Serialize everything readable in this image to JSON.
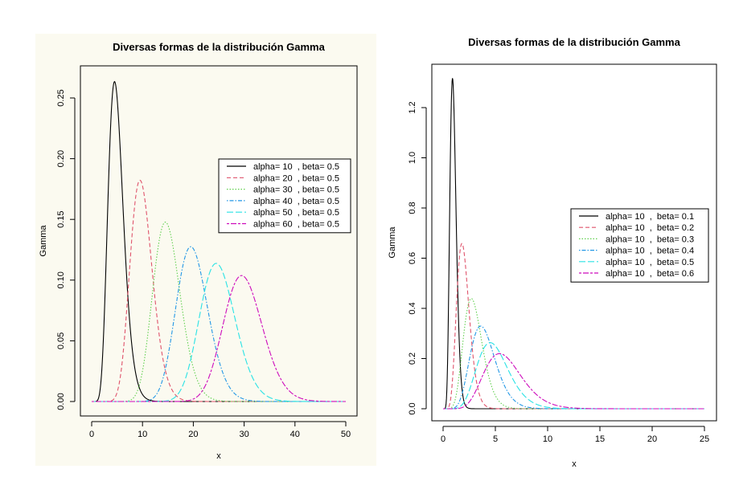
{
  "chart_data": [
    {
      "type": "line",
      "title": "Diversas formas de la distribución Gamma",
      "xlabel": "x",
      "ylabel": "Gamma",
      "xlim": [
        0,
        50
      ],
      "ylim": [
        0,
        0.27
      ],
      "xticks": [
        "0",
        "10",
        "20",
        "30",
        "40",
        "50"
      ],
      "xtick_values": [
        0,
        10,
        20,
        30,
        40,
        50
      ],
      "yticks": [
        "0.00",
        "0.05",
        "0.10",
        "0.15",
        "0.20",
        "0.25"
      ],
      "ytick_values": [
        0,
        0.05,
        0.1,
        0.15,
        0.2,
        0.25
      ],
      "grid": false,
      "legend_position": "right",
      "series": [
        {
          "name": "alpha= 10  , beta= 0.5",
          "shape": 10,
          "scale": 0.5,
          "color": "#000000",
          "dash": "solid"
        },
        {
          "name": "alpha= 20  , beta= 0.5",
          "shape": 20,
          "scale": 0.5,
          "color": "#DF536B",
          "dash": "dashed"
        },
        {
          "name": "alpha= 30  , beta= 0.5",
          "shape": 30,
          "scale": 0.5,
          "color": "#61D04F",
          "dash": "dotted"
        },
        {
          "name": "alpha= 40  , beta= 0.5",
          "shape": 40,
          "scale": 0.5,
          "color": "#2297E6",
          "dash": "dotdash"
        },
        {
          "name": "alpha= 50  , beta= 0.5",
          "shape": 50,
          "scale": 0.5,
          "color": "#28E2E5",
          "dash": "longdash"
        },
        {
          "name": "alpha= 60  , beta= 0.5",
          "shape": 60,
          "scale": 0.5,
          "color": "#CD0BBC",
          "dash": "twodash"
        }
      ]
    },
    {
      "type": "line",
      "title": "Diversas formas de la distribución Gamma",
      "xlabel": "x",
      "ylabel": "Gamma",
      "xlim": [
        0,
        25
      ],
      "ylim": [
        0,
        1.35
      ],
      "xticks": [
        "0",
        "5",
        "10",
        "15",
        "20",
        "25"
      ],
      "xtick_values": [
        0,
        5,
        10,
        15,
        20,
        25
      ],
      "yticks": [
        "0.0",
        "0.2",
        "0.4",
        "0.6",
        "0.8",
        "1.0",
        "1.2"
      ],
      "ytick_values": [
        0,
        0.2,
        0.4,
        0.6,
        0.8,
        1.0,
        1.2
      ],
      "grid": false,
      "legend_position": "right",
      "series": [
        {
          "name": "alpha= 10  ,  beta= 0.1",
          "shape": 10,
          "scale": 0.1,
          "color": "#000000",
          "dash": "solid"
        },
        {
          "name": "alpha= 10  ,  beta= 0.2",
          "shape": 10,
          "scale": 0.2,
          "color": "#DF536B",
          "dash": "dashed"
        },
        {
          "name": "alpha= 10  ,  beta= 0.3",
          "shape": 10,
          "scale": 0.3,
          "color": "#61D04F",
          "dash": "dotted"
        },
        {
          "name": "alpha= 10  ,  beta= 0.4",
          "shape": 10,
          "scale": 0.4,
          "color": "#2297E6",
          "dash": "dotdash"
        },
        {
          "name": "alpha= 10  ,  beta= 0.5",
          "shape": 10,
          "scale": 0.5,
          "color": "#28E2E5",
          "dash": "longdash"
        },
        {
          "name": "alpha= 10  ,  beta= 0.6",
          "shape": 10,
          "scale": 0.6,
          "color": "#CD0BBC",
          "dash": "twodash"
        }
      ]
    }
  ]
}
